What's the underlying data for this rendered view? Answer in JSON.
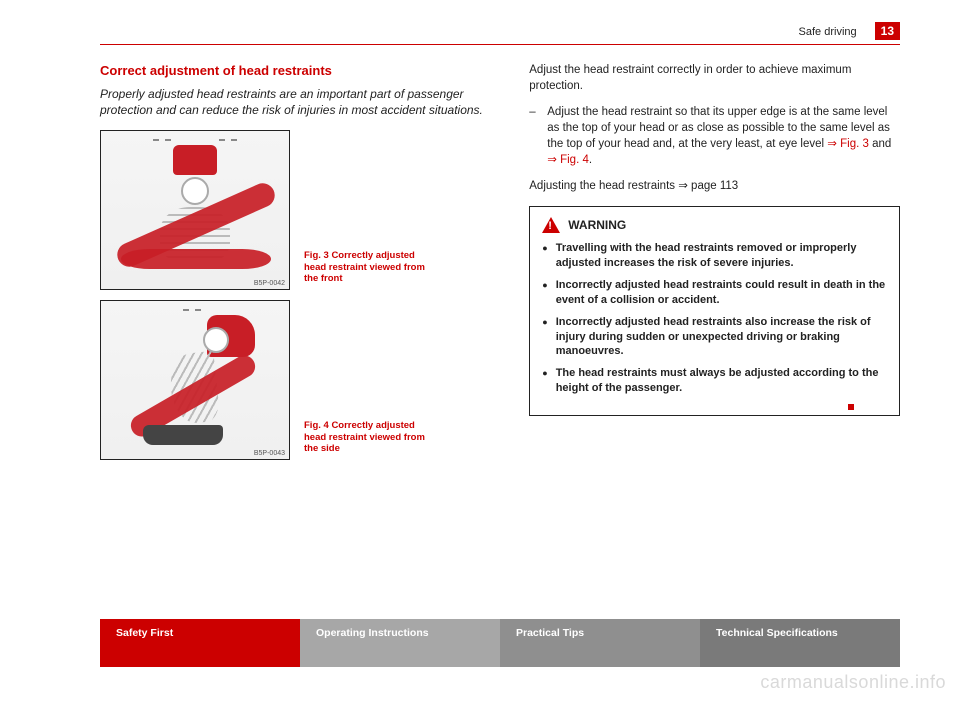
{
  "header": {
    "section": "Safe driving",
    "page_number": "13"
  },
  "title": "Correct adjustment of head restraints",
  "intro": "Properly adjusted head restraints are an important part of passenger protection and can reduce the risk of injuries in most accident situations.",
  "figures": {
    "fig3": {
      "image_code": "B5P-0042",
      "caption": "Fig. 3  Correctly adjusted head restraint viewed from the front"
    },
    "fig4": {
      "image_code": "B5P-0043",
      "caption": "Fig. 4  Correctly adjusted head restraint viewed from the side"
    }
  },
  "right": {
    "lead": "Adjust the head restraint correctly in order to achieve maximum protection.",
    "bullet_pre": "Adjust the head restraint so that its upper edge is at the same level as the top of your head or as close as possible to the same level as the top of your head and, at the very least, at eye level ",
    "ref3": "⇒ Fig. 3",
    "and": " and ",
    "ref4": "⇒ Fig. 4",
    "period": ".",
    "pageref": "Adjusting the head restraints ⇒ page 113"
  },
  "warning": {
    "title": "WARNING",
    "items": [
      "Travelling with the head restraints removed or improperly adjusted increases the risk of severe injuries.",
      "Incorrectly adjusted head restraints could result in death in the event of a collision or accident.",
      "Incorrectly adjusted head restraints also increase the risk of injury during sudden or unexpected driving or braking manoeuvres.",
      "The head restraints must always be adjusted according to the height of the passenger."
    ]
  },
  "footer": {
    "tabs": [
      "Safety First",
      "Operating Instructions",
      "Practical Tips",
      "Technical Specifications"
    ],
    "colors": [
      "#cc0000",
      "#a7a7a7",
      "#8f8f8f",
      "#7a7a7a"
    ]
  },
  "watermark": "carmanualsonline.info",
  "colors": {
    "accent": "#cc0000",
    "text": "#222222"
  }
}
